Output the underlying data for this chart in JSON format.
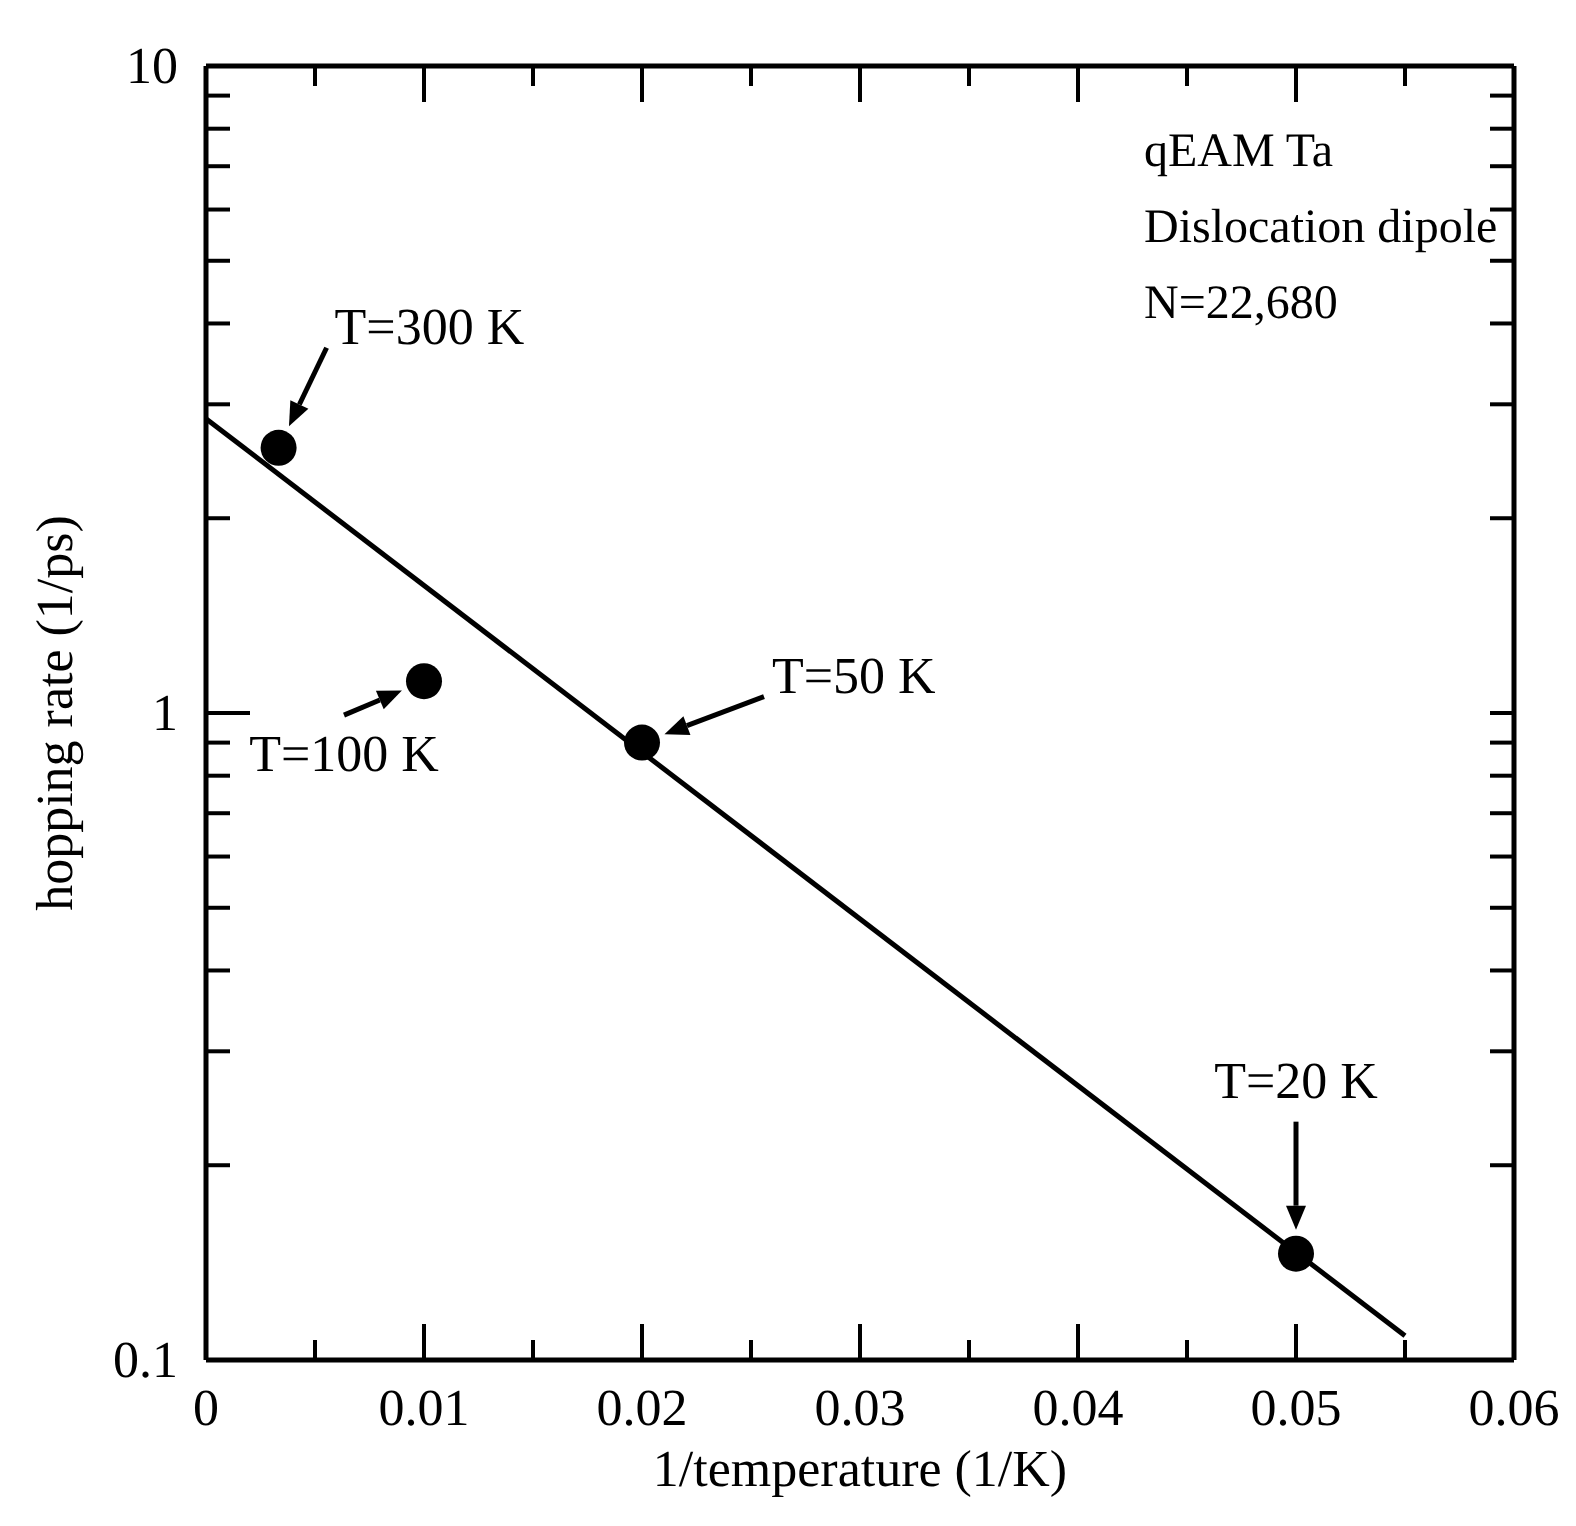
{
  "chart_data": {
    "type": "scatter",
    "xlabel": "1/temperature (1/K)",
    "ylabel": "hopping rate (1/ps)",
    "x": [
      0.00333,
      0.01,
      0.02,
      0.05
    ],
    "series": [
      {
        "type": "scatter",
        "color": "#000000",
        "marker": "circle",
        "values": [
          2.57,
          1.12,
          0.9,
          0.146
        ]
      },
      {
        "type": "line",
        "color": "#000000",
        "marker": "none",
        "x": [
          0,
          0.055
        ],
        "values": [
          2.85,
          0.109
        ]
      }
    ],
    "log": "y",
    "line_style": "solid",
    "grid": false,
    "xlim": [
      0,
      0.06
    ],
    "ylim": [
      0.1,
      10
    ],
    "xticks": [
      0,
      {
        "value": 0.005,
        "label": null
      },
      0.01,
      {
        "value": 0.015,
        "label": null
      },
      0.02,
      {
        "value": 0.025,
        "label": null
      },
      0.03,
      {
        "value": 0.035,
        "label": null
      },
      0.04,
      {
        "value": 0.045,
        "label": null
      },
      0.05,
      {
        "value": 0.055,
        "label": null
      },
      0.06
    ],
    "yticks": [
      0.1,
      {
        "value": 0.2,
        "label": null
      },
      {
        "value": 0.3,
        "label": null
      },
      {
        "value": 0.4,
        "label": null
      },
      {
        "value": 0.5,
        "label": null
      },
      {
        "value": 0.6,
        "label": null
      },
      {
        "value": 0.7,
        "label": null
      },
      {
        "value": 0.8,
        "label": null
      },
      {
        "value": 0.9,
        "label": null
      },
      1,
      {
        "value": 2,
        "label": null
      },
      {
        "value": 3,
        "label": null
      },
      {
        "value": 4,
        "label": null
      },
      {
        "value": 5,
        "label": null
      },
      {
        "value": 6,
        "label": null
      },
      {
        "value": 7,
        "label": null
      },
      {
        "value": 8,
        "label": null
      },
      {
        "value": 9,
        "label": null
      },
      10
    ],
    "annotations": [
      {
        "text": "T=300 K",
        "x": 0.00333,
        "y": 2.57
      },
      {
        "text": "T=100 K",
        "x": 0.01,
        "y": 1.12
      },
      {
        "text": "T=50 K",
        "x": 0.02,
        "y": 0.9
      },
      {
        "text": "T=20 K",
        "x": 0.05,
        "y": 0.146
      },
      "qEAM Ta",
      "Dislocation dipole",
      "N=22,680"
    ]
  }
}
